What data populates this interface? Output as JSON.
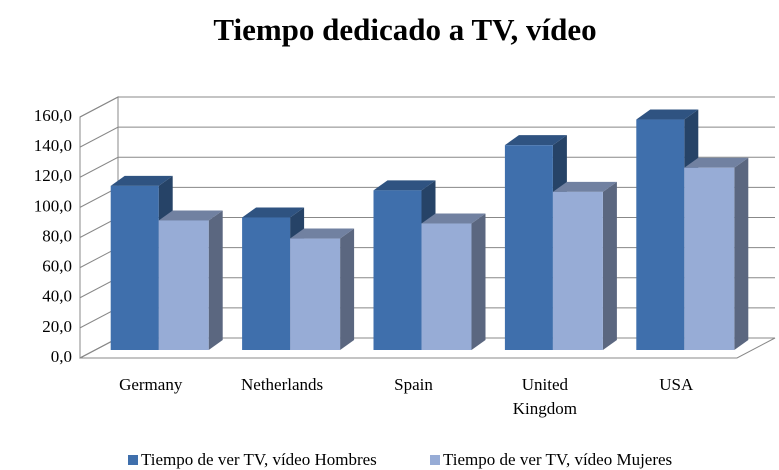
{
  "chart_data": {
    "type": "bar3d",
    "title": "Tiempo dedicado a TV, vídeo",
    "categories": [
      "Germany",
      "Netherlands",
      "Spain",
      "United Kingdom",
      "USA"
    ],
    "series": [
      {
        "name": "Tiempo de ver TV, vídeo Hombres",
        "color": "#3f6fac",
        "values": [
          109,
          88,
          106,
          136,
          153
        ]
      },
      {
        "name": "Tiempo de ver TV, vídeo Mujeres",
        "color": "#97acd6",
        "values": [
          86,
          74,
          84,
          105,
          121
        ]
      }
    ],
    "ylim": [
      0,
      160
    ],
    "yticks": [
      {
        "value": 0,
        "label": "0,0"
      },
      {
        "value": 20,
        "label": "20,0"
      },
      {
        "value": 40,
        "label": "40,0"
      },
      {
        "value": 60,
        "label": "60,0"
      },
      {
        "value": 80,
        "label": "80,0"
      },
      {
        "value": 100,
        "label": "100,0"
      },
      {
        "value": 120,
        "label": "120,0"
      },
      {
        "value": 140,
        "label": "140,0"
      },
      {
        "value": 160,
        "label": "160,0"
      }
    ],
    "grid": true,
    "legend": "bottom"
  }
}
